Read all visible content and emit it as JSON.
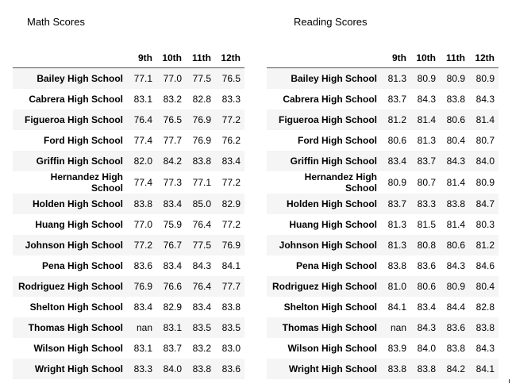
{
  "math": {
    "title": "Math Scores",
    "grades": [
      "9th",
      "10th",
      "11th",
      "12th"
    ],
    "rows": [
      {
        "school": "Bailey High School",
        "values": [
          "77.1",
          "77.0",
          "77.5",
          "76.5"
        ]
      },
      {
        "school": "Cabrera High School",
        "values": [
          "83.1",
          "83.2",
          "82.8",
          "83.3"
        ]
      },
      {
        "school": "Figueroa High School",
        "values": [
          "76.4",
          "76.5",
          "76.9",
          "77.2"
        ]
      },
      {
        "school": "Ford High School",
        "values": [
          "77.4",
          "77.7",
          "76.9",
          "76.2"
        ]
      },
      {
        "school": "Griffin High School",
        "values": [
          "82.0",
          "84.2",
          "83.8",
          "83.4"
        ]
      },
      {
        "school": "Hernandez High School",
        "values": [
          "77.4",
          "77.3",
          "77.1",
          "77.2"
        ]
      },
      {
        "school": "Holden High School",
        "values": [
          "83.8",
          "83.4",
          "85.0",
          "82.9"
        ]
      },
      {
        "school": "Huang High School",
        "values": [
          "77.0",
          "75.9",
          "76.4",
          "77.2"
        ]
      },
      {
        "school": "Johnson High School",
        "values": [
          "77.2",
          "76.7",
          "77.5",
          "76.9"
        ]
      },
      {
        "school": "Pena High School",
        "values": [
          "83.6",
          "83.4",
          "84.3",
          "84.1"
        ]
      },
      {
        "school": "Rodriguez High School",
        "values": [
          "76.9",
          "76.6",
          "76.4",
          "77.7"
        ]
      },
      {
        "school": "Shelton High School",
        "values": [
          "83.4",
          "82.9",
          "83.4",
          "83.8"
        ]
      },
      {
        "school": "Thomas High School",
        "values": [
          "nan",
          "83.1",
          "83.5",
          "83.5"
        ]
      },
      {
        "school": "Wilson High School",
        "values": [
          "83.1",
          "83.7",
          "83.2",
          "83.0"
        ]
      },
      {
        "school": "Wright High School",
        "values": [
          "83.3",
          "84.0",
          "83.8",
          "83.6"
        ]
      }
    ]
  },
  "reading": {
    "title": "Reading Scores",
    "grades": [
      "9th",
      "10th",
      "11th",
      "12th"
    ],
    "rows": [
      {
        "school": "Bailey High School",
        "values": [
          "81.3",
          "80.9",
          "80.9",
          "80.9"
        ]
      },
      {
        "school": "Cabrera High School",
        "values": [
          "83.7",
          "84.3",
          "83.8",
          "84.3"
        ]
      },
      {
        "school": "Figueroa High School",
        "values": [
          "81.2",
          "81.4",
          "80.6",
          "81.4"
        ]
      },
      {
        "school": "Ford High School",
        "values": [
          "80.6",
          "81.3",
          "80.4",
          "80.7"
        ]
      },
      {
        "school": "Griffin High School",
        "values": [
          "83.4",
          "83.7",
          "84.3",
          "84.0"
        ]
      },
      {
        "school": "Hernandez High School",
        "values": [
          "80.9",
          "80.7",
          "81.4",
          "80.9"
        ]
      },
      {
        "school": "Holden High School",
        "values": [
          "83.7",
          "83.3",
          "83.8",
          "84.7"
        ]
      },
      {
        "school": "Huang High School",
        "values": [
          "81.3",
          "81.5",
          "81.4",
          "80.3"
        ]
      },
      {
        "school": "Johnson High School",
        "values": [
          "81.3",
          "80.8",
          "80.6",
          "81.2"
        ]
      },
      {
        "school": "Pena High School",
        "values": [
          "83.8",
          "83.6",
          "84.3",
          "84.6"
        ]
      },
      {
        "school": "Rodriguez High School",
        "values": [
          "81.0",
          "80.6",
          "80.9",
          "80.4"
        ]
      },
      {
        "school": "Shelton High School",
        "values": [
          "84.1",
          "83.4",
          "84.4",
          "82.8"
        ]
      },
      {
        "school": "Thomas High School",
        "values": [
          "nan",
          "84.3",
          "83.6",
          "83.8"
        ]
      },
      {
        "school": "Wilson High School",
        "values": [
          "83.9",
          "84.0",
          "83.8",
          "84.3"
        ]
      },
      {
        "school": "Wright High School",
        "values": [
          "83.8",
          "83.8",
          "84.2",
          "84.1"
        ]
      }
    ]
  }
}
